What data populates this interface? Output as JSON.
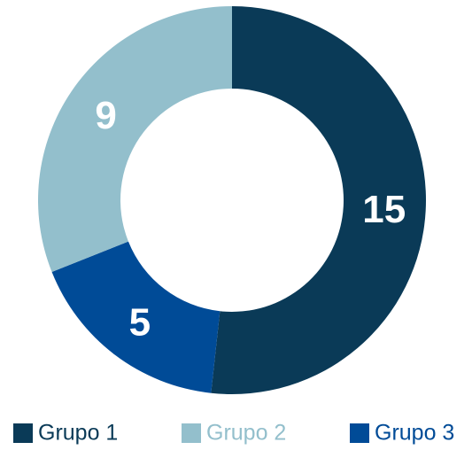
{
  "chart_data": {
    "type": "donut",
    "categories": [
      "Grupo 1",
      "Grupo 3",
      "Grupo 2"
    ],
    "values": [
      15,
      5,
      9
    ],
    "colors": [
      "#0a3a57",
      "#004b97",
      "#93bfcc"
    ]
  }
}
